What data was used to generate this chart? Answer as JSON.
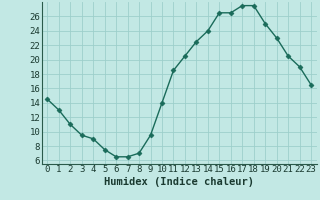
{
  "x": [
    0,
    1,
    2,
    3,
    4,
    5,
    6,
    7,
    8,
    9,
    10,
    11,
    12,
    13,
    14,
    15,
    16,
    17,
    18,
    19,
    20,
    21,
    22,
    23
  ],
  "y": [
    14.5,
    13,
    11,
    9.5,
    9,
    7.5,
    6.5,
    6.5,
    7,
    9.5,
    14,
    18.5,
    20.5,
    22.5,
    24,
    26.5,
    26.5,
    27.5,
    27.5,
    25,
    23,
    20.5,
    19,
    16.5
  ],
  "line_color": "#1a6b5a",
  "marker_color": "#1a6b5a",
  "bg_color": "#c2e8e4",
  "grid_color": "#9dcfcb",
  "xlabel": "Humidex (Indice chaleur)",
  "xlim": [
    -0.5,
    23.5
  ],
  "ylim": [
    5.5,
    28
  ],
  "yticks": [
    6,
    8,
    10,
    12,
    14,
    16,
    18,
    20,
    22,
    24,
    26
  ],
  "xticks": [
    0,
    1,
    2,
    3,
    4,
    5,
    6,
    7,
    8,
    9,
    10,
    11,
    12,
    13,
    14,
    15,
    16,
    17,
    18,
    19,
    20,
    21,
    22,
    23
  ],
  "xlabel_fontsize": 7.5,
  "tick_fontsize": 6.5,
  "line_width": 1.0,
  "marker_size": 2.5
}
